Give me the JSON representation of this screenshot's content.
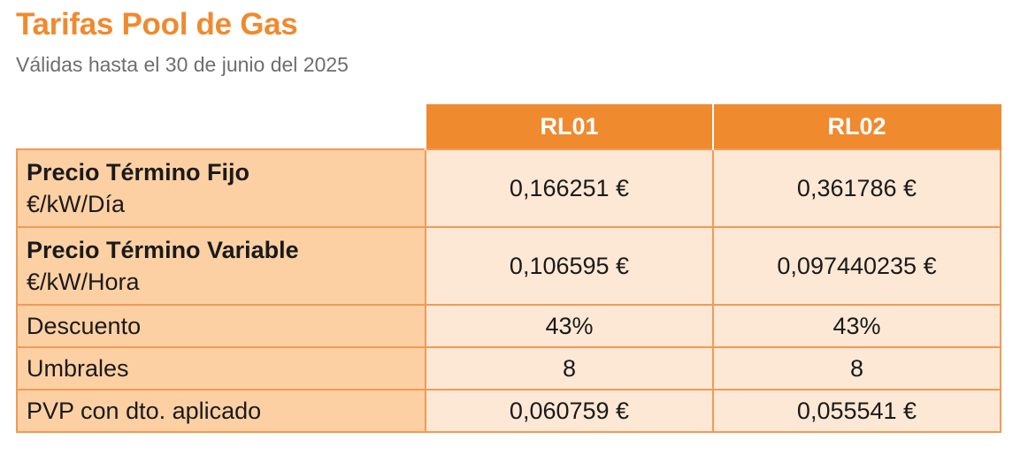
{
  "header": {
    "title": "Tarifas Pool de Gas",
    "subtitle": "Válidas hasta el 30 de junio del 2025"
  },
  "table": {
    "columns": [
      "RL01",
      "RL02"
    ],
    "rows": [
      {
        "label": "Precio Término Fijo",
        "unit": "€/kW/Día",
        "values": [
          "0,166251 €",
          "0,361786 €"
        ]
      },
      {
        "label": "Precio Término Variable",
        "unit": "€/kW/Hora",
        "values": [
          "0,106595 €",
          "0,097440235 €"
        ]
      },
      {
        "label": "Descuento",
        "values": [
          "43%",
          "43%"
        ]
      },
      {
        "label": "Umbrales",
        "values": [
          "8",
          "8"
        ]
      },
      {
        "label": "PVP con dto. aplicado",
        "values": [
          "0,060759 €",
          "0,055541 €"
        ]
      }
    ]
  },
  "colors": {
    "accent": "#f08a2e",
    "label_cell": "#fdd0a4",
    "value_cell": "#fde8d5",
    "border": "#f39a55",
    "subtitle_text": "#6e6e6e"
  }
}
